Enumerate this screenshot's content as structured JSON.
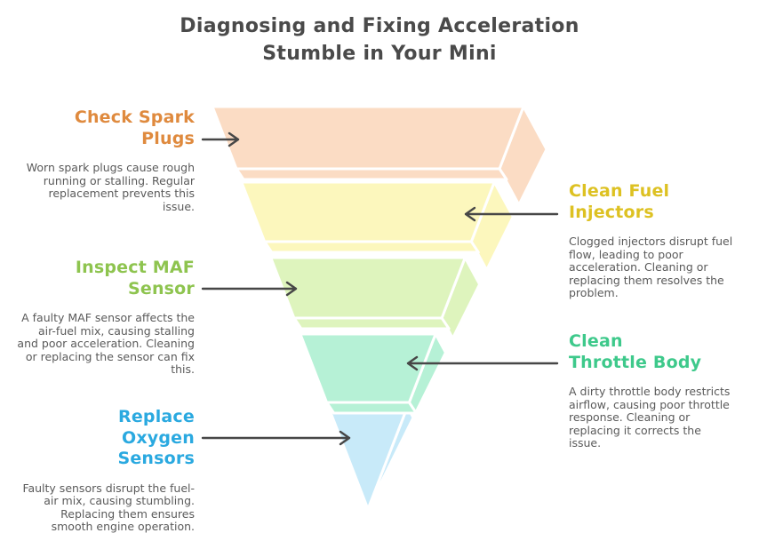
{
  "title": {
    "line1": "Diagnosing and Fixing Acceleration",
    "line2": "Stumble in Your Mini",
    "color": "#4a4a4a"
  },
  "colors": {
    "arrow": "#474747",
    "body_text": "#5a5a5a",
    "background": "#ffffff",
    "separator": "#ffffff"
  },
  "steps": [
    {
      "label": "Check Spark Plugs",
      "description": "Worn spark plugs cause rough running or stalling. Regular replacement prevents this issue.",
      "side": "left",
      "label_color": "#df8a3e",
      "fill": "#fbdcc4"
    },
    {
      "label": "Clean Fuel Injectors",
      "description": "Clogged injectors disrupt fuel flow, leading to poor acceleration. Cleaning or replacing them resolves the problem.",
      "side": "right",
      "label_color": "#ddc122",
      "fill": "#fcf7bd"
    },
    {
      "label": "Inspect MAF Sensor",
      "description": "A faulty MAF sensor affects the air-fuel mix, causing stalling and poor acceleration. Cleaning or replacing the sensor can fix this.",
      "side": "left",
      "label_color": "#8ec44f",
      "fill": "#def4bd"
    },
    {
      "label": "Clean Throttle Body",
      "description": "A dirty throttle body restricts airflow, causing poor throttle response. Cleaning or replacing it corrects the issue.",
      "side": "right",
      "label_color": "#3ec98b",
      "fill": "#b6f1d6"
    },
    {
      "label": "Replace Oxygen Sensors",
      "description": "Faulty sensors disrupt the fuel-air mix, causing stumbling. Replacing them ensures smooth engine operation.",
      "side": "left",
      "label_color": "#2aa9e0",
      "fill": "#c8eaf9"
    }
  ]
}
